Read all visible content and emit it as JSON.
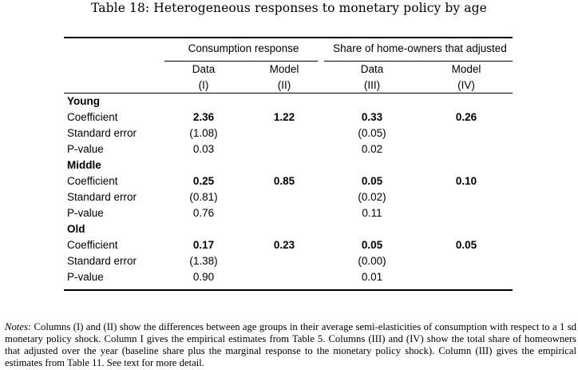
{
  "caption": "Table 18: Heterogeneous responses to monetary policy by age",
  "header": {
    "group1": "Consumption response",
    "group2": "Share of home-owners that adjusted",
    "columns": [
      {
        "name": "Data",
        "num": "(I)"
      },
      {
        "name": "Model",
        "num": "(II)"
      },
      {
        "name": "Data",
        "num": "(III)"
      },
      {
        "name": "Model",
        "num": "(IV)"
      }
    ]
  },
  "groups": [
    {
      "label": "Young",
      "rows": [
        {
          "label": "Coefficient",
          "values": [
            "2.36",
            "1.22",
            "0.33",
            "0.26"
          ]
        },
        {
          "label": "Standard error",
          "values": [
            "(1.08)",
            "",
            "(0.05)",
            ""
          ]
        },
        {
          "label": "P-value",
          "values": [
            "0.03",
            "",
            "0.02",
            ""
          ]
        }
      ]
    },
    {
      "label": "Middle",
      "rows": [
        {
          "label": "Coefficient",
          "values": [
            "0.25",
            "0.85",
            "0.05",
            "0.10"
          ]
        },
        {
          "label": "Standard error",
          "values": [
            "(0.81)",
            "",
            "(0.02)",
            ""
          ]
        },
        {
          "label": "P-value",
          "values": [
            "0.76",
            "",
            "0.11",
            ""
          ]
        }
      ]
    },
    {
      "label": "Old",
      "rows": [
        {
          "label": "Coefficient",
          "values": [
            "0.17",
            "0.23",
            "0.05",
            "0.05"
          ]
        },
        {
          "label": "Standard error",
          "values": [
            "(1.38)",
            "",
            "(0.00)",
            ""
          ]
        },
        {
          "label": "P-value",
          "values": [
            "0.90",
            "",
            "0.01",
            ""
          ]
        }
      ]
    }
  ],
  "notes": {
    "label": "Notes:",
    "text": " Columns (I) and (II) show the differences between age groups in their average semi-elasticities of consumption with respect to a 1 sd monetary policy shock. Column I gives the empirical estimates from Table 5. Columns (III) and (IV) show the total share of homeowners that adjusted over the year (baseline share plus the marginal response to the monetary policy shock). Column (III) gives the empirical estimates from Table 11. See text for more detail."
  }
}
